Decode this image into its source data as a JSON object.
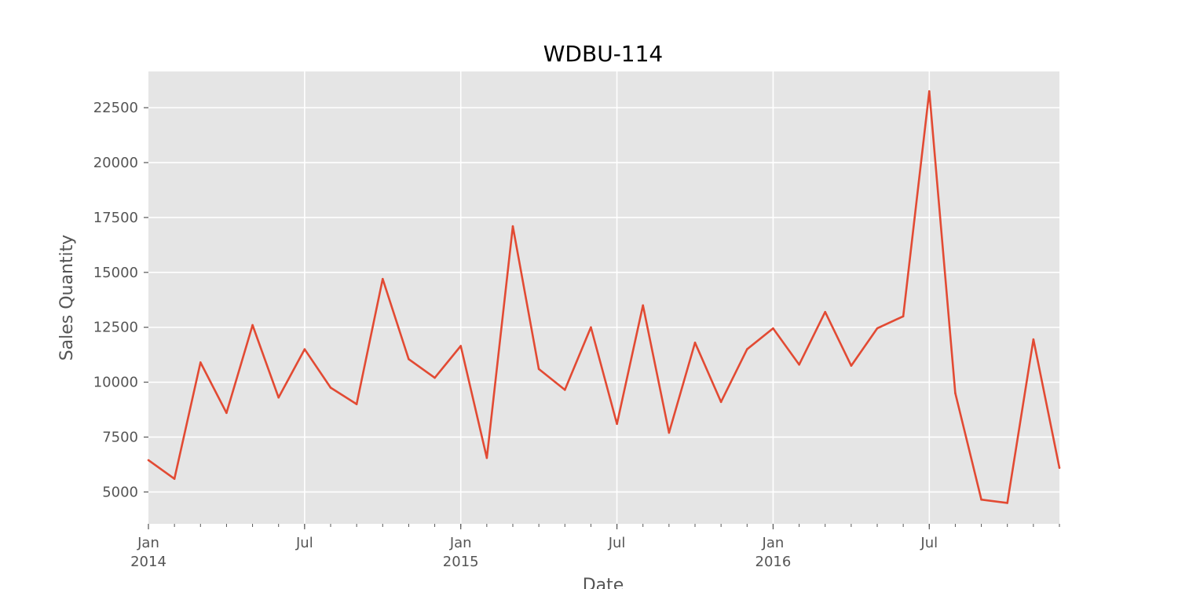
{
  "chart_data": {
    "type": "line",
    "title": "WDBU-114",
    "xlabel": "Date",
    "ylabel": "Sales Quantity",
    "x": [
      "2014-01",
      "2014-02",
      "2014-03",
      "2014-04",
      "2014-05",
      "2014-06",
      "2014-07",
      "2014-08",
      "2014-09",
      "2014-10",
      "2014-11",
      "2014-12",
      "2015-01",
      "2015-02",
      "2015-03",
      "2015-04",
      "2015-05",
      "2015-06",
      "2015-07",
      "2015-08",
      "2015-09",
      "2015-10",
      "2015-11",
      "2015-12",
      "2016-01",
      "2016-02",
      "2016-03",
      "2016-04",
      "2016-05",
      "2016-06",
      "2016-07",
      "2016-08",
      "2016-09",
      "2016-10",
      "2016-11",
      "2016-12"
    ],
    "series": [
      {
        "values": [
          6450,
          5600,
          10900,
          8600,
          12600,
          9300,
          11500,
          9750,
          9000,
          14700,
          11050,
          10200,
          11650,
          6550,
          17100,
          10600,
          9650,
          12500,
          8100,
          13500,
          7700,
          11800,
          9100,
          11500,
          12450,
          10800,
          13200,
          10750,
          12450,
          13000,
          23250,
          9500,
          4650,
          4500,
          11950,
          6100
        ]
      }
    ],
    "ylim": [
      3550,
      24150
    ],
    "yticks": [
      5000,
      7500,
      10000,
      12500,
      15000,
      17500,
      20000,
      22500
    ],
    "ytick_labels": [
      "5000",
      "7500",
      "10000",
      "12500",
      "15000",
      "17500",
      "20000",
      "22500"
    ],
    "xticks_major": [
      {
        "month": 0,
        "label": "Jan",
        "sub": "2014"
      },
      {
        "month": 6,
        "label": "Jul",
        "sub": ""
      },
      {
        "month": 12,
        "label": "Jan",
        "sub": "2015"
      },
      {
        "month": 18,
        "label": "Jul",
        "sub": ""
      },
      {
        "month": 24,
        "label": "Jan",
        "sub": "2016"
      },
      {
        "month": 30,
        "label": "Jul",
        "sub": ""
      }
    ],
    "grid": true,
    "colors": {
      "line": "#e24a33",
      "plot_bg": "#e5e5e5",
      "grid": "#ffffff",
      "tick": "#555555"
    }
  }
}
